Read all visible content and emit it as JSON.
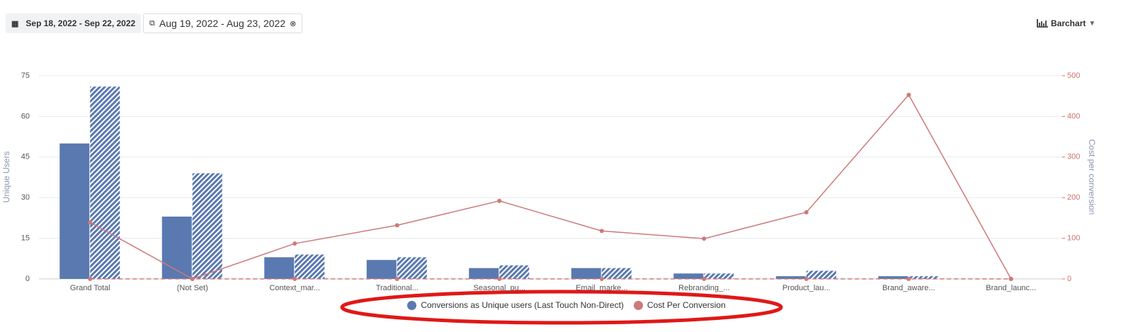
{
  "controls": {
    "date_range": "Sep 18, 2022 - Sep 22, 2022",
    "compare_range": "Aug 19, 2022 - Aug 23, 2022",
    "view": "Barchart"
  },
  "chart_data": {
    "type": "bar",
    "y_label": "Unique Users",
    "y2_label": "Cost per conversion",
    "categories": [
      "Grand Total",
      "(Not Set)",
      "Context_mar...",
      "Traditional...",
      "Seasonal_pu...",
      "Email_marke...",
      "Rebranding_...",
      "Product_lau...",
      "Brand_aware...",
      "Brand_launc..."
    ],
    "ylim": [
      0,
      75
    ],
    "yticks": [
      0,
      15,
      30,
      45,
      60,
      75
    ],
    "y2lim": [
      0,
      500
    ],
    "y2ticks": [
      0,
      100,
      200,
      300,
      400,
      500
    ],
    "grid": true,
    "legend": "bottom",
    "series": [
      {
        "name": "Conversions as Unique users (Last Touch Non-Direct)",
        "type": "bar",
        "color": "#5a79b0",
        "values": [
          50,
          23,
          8,
          7,
          4,
          4,
          2,
          1,
          1,
          0
        ]
      },
      {
        "type": "bar",
        "color": "#5a79b0",
        "pattern": "hatched",
        "values": [
          71,
          39,
          9,
          8,
          5,
          4,
          2,
          3,
          1,
          0
        ]
      },
      {
        "name": "Cost Per Conversion",
        "type": "line",
        "axis": "y2",
        "color": "#cd7a7a",
        "values": [
          139,
          0,
          87,
          132,
          192,
          118,
          99,
          164,
          453,
          0
        ]
      },
      {
        "type": "line",
        "axis": "y2",
        "color": "#cd7a7a",
        "style": "dashed",
        "values": [
          0,
          0,
          0,
          0,
          0,
          0,
          0,
          0,
          0,
          0
        ]
      }
    ]
  }
}
